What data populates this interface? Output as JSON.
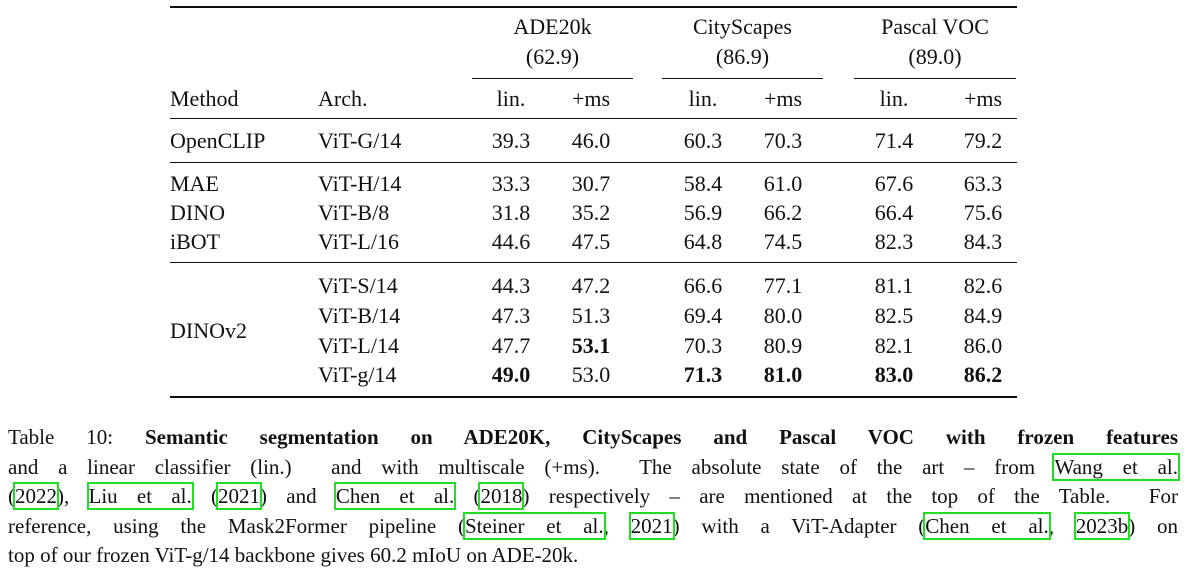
{
  "table": {
    "group_headers": [
      {
        "name": "ADE20k",
        "sota": "(62.9)"
      },
      {
        "name": "CityScapes",
        "sota": "(86.9)"
      },
      {
        "name": "Pascal VOC",
        "sota": "(89.0)"
      }
    ],
    "columns": [
      "Method",
      "Arch.",
      "lin.",
      "+ms",
      "lin.",
      "+ms",
      "lin.",
      "+ms"
    ],
    "groups": [
      {
        "method": "OpenCLIP",
        "rows": [
          [
            "ViT-G/14",
            "39.3",
            "46.0",
            "60.3",
            "70.3",
            "71.4",
            "79.2"
          ]
        ]
      },
      {
        "method": "MAE",
        "rows": [
          [
            "ViT-H/14",
            "33.3",
            "30.7",
            "58.4",
            "61.0",
            "67.6",
            "63.3"
          ]
        ]
      },
      {
        "method": "DINO",
        "rows": [
          [
            "ViT-B/8",
            "31.8",
            "35.2",
            "56.9",
            "66.2",
            "66.4",
            "75.6"
          ]
        ]
      },
      {
        "method": "iBOT",
        "rows": [
          [
            "ViT-L/16",
            "44.6",
            "47.5",
            "64.8",
            "74.5",
            "82.3",
            "84.3"
          ]
        ]
      },
      {
        "method": "DINOv2",
        "rows": [
          [
            "ViT-S/14",
            "44.3",
            "47.2",
            "66.6",
            "77.1",
            "81.1",
            "82.6"
          ],
          [
            "ViT-B/14",
            "47.3",
            "51.3",
            "69.4",
            "80.0",
            "82.5",
            "84.9"
          ],
          [
            "ViT-L/14",
            "47.7",
            "53.1",
            "70.3",
            "80.9",
            "82.1",
            "86.0"
          ],
          [
            "ViT-g/14",
            "49.0",
            "53.0",
            "71.3",
            "81.0",
            "83.0",
            "86.2"
          ]
        ]
      }
    ]
  },
  "caption": {
    "lines": [
      [
        "Table 10: ",
        "Semantic segmentation on ADE20K, CityScapes and Pascal VOC with frozen features"
      ],
      [
        "and a linear classifier (lin.)  and with multiscale (+ms).  The absolute state of the art – from ",
        "Wang et al."
      ],
      [
        "(",
        "2022",
        "), ",
        "Liu et al.",
        " (",
        "2021",
        ") and ",
        "Chen et al.",
        " (",
        "2018",
        ") respectively – are mentioned at the top of the Table.  For"
      ],
      [
        "reference, using the Mask2Former pipeline (",
        "Steiner et al.",
        ", ",
        "2021",
        ") with a ViT-Adapter (",
        "Chen et al.",
        ", ",
        "2023b",
        ") on"
      ],
      [
        "top of our frozen ViT-g/14 backbone gives 60.2 mIoU on ADE-20k."
      ]
    ]
  }
}
